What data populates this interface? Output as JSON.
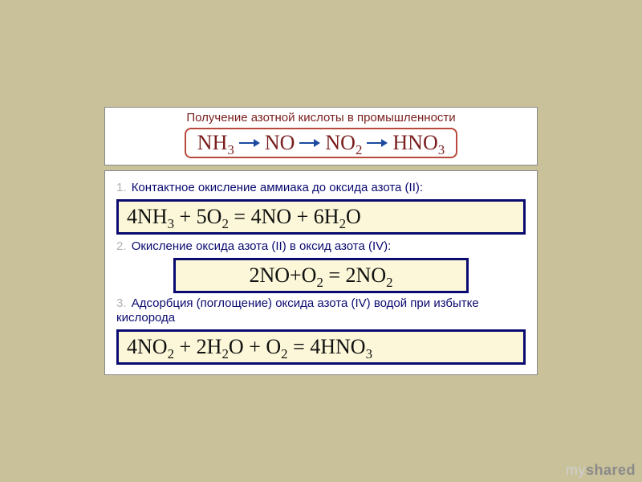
{
  "colors": {
    "slide_bg": "#c9c19a",
    "panel_bg": "#ffffff",
    "panel_border": "#888888",
    "title_text": "#7a1d1d",
    "scheme_border": "#b74a3c",
    "scheme_text": "#7a1d1d",
    "arrow": "#1b4aa0",
    "step_num": "#b0b0b0",
    "step_text": "#0a0a70",
    "eq_border": "#0a0a70",
    "eq_bg": "#fbf7d8",
    "eq_text": "#111111",
    "watermark_my": "#cfcfcf",
    "watermark_shared": "#8a8a8a"
  },
  "title": "Получение азотной кислоты в промышленности",
  "scheme": {
    "items": [
      "NH₃",
      "NO",
      "NO₂",
      "HNO₃"
    ]
  },
  "steps": [
    {
      "num": "1.",
      "text": "Контактное окисление аммиака до оксида азота (II):",
      "equation": "4NH₃ + 5O₂ = 4NO + 6H₂O",
      "box_style": "wide"
    },
    {
      "num": "2.",
      "text": "Окисление оксида азота (II) в оксид азота (IV):",
      "equation": "2NO+O₂ = 2NO₂",
      "box_style": "center"
    },
    {
      "num": "3.",
      "text": "Адсорбция (поглощение) оксида азота (IV) водой при избытке кислорода",
      "equation": "4NO₂ + 2H₂O + O₂ = 4HNO₃",
      "box_style": "wide"
    }
  ],
  "watermark": {
    "my": "my",
    "shared": "shared"
  }
}
